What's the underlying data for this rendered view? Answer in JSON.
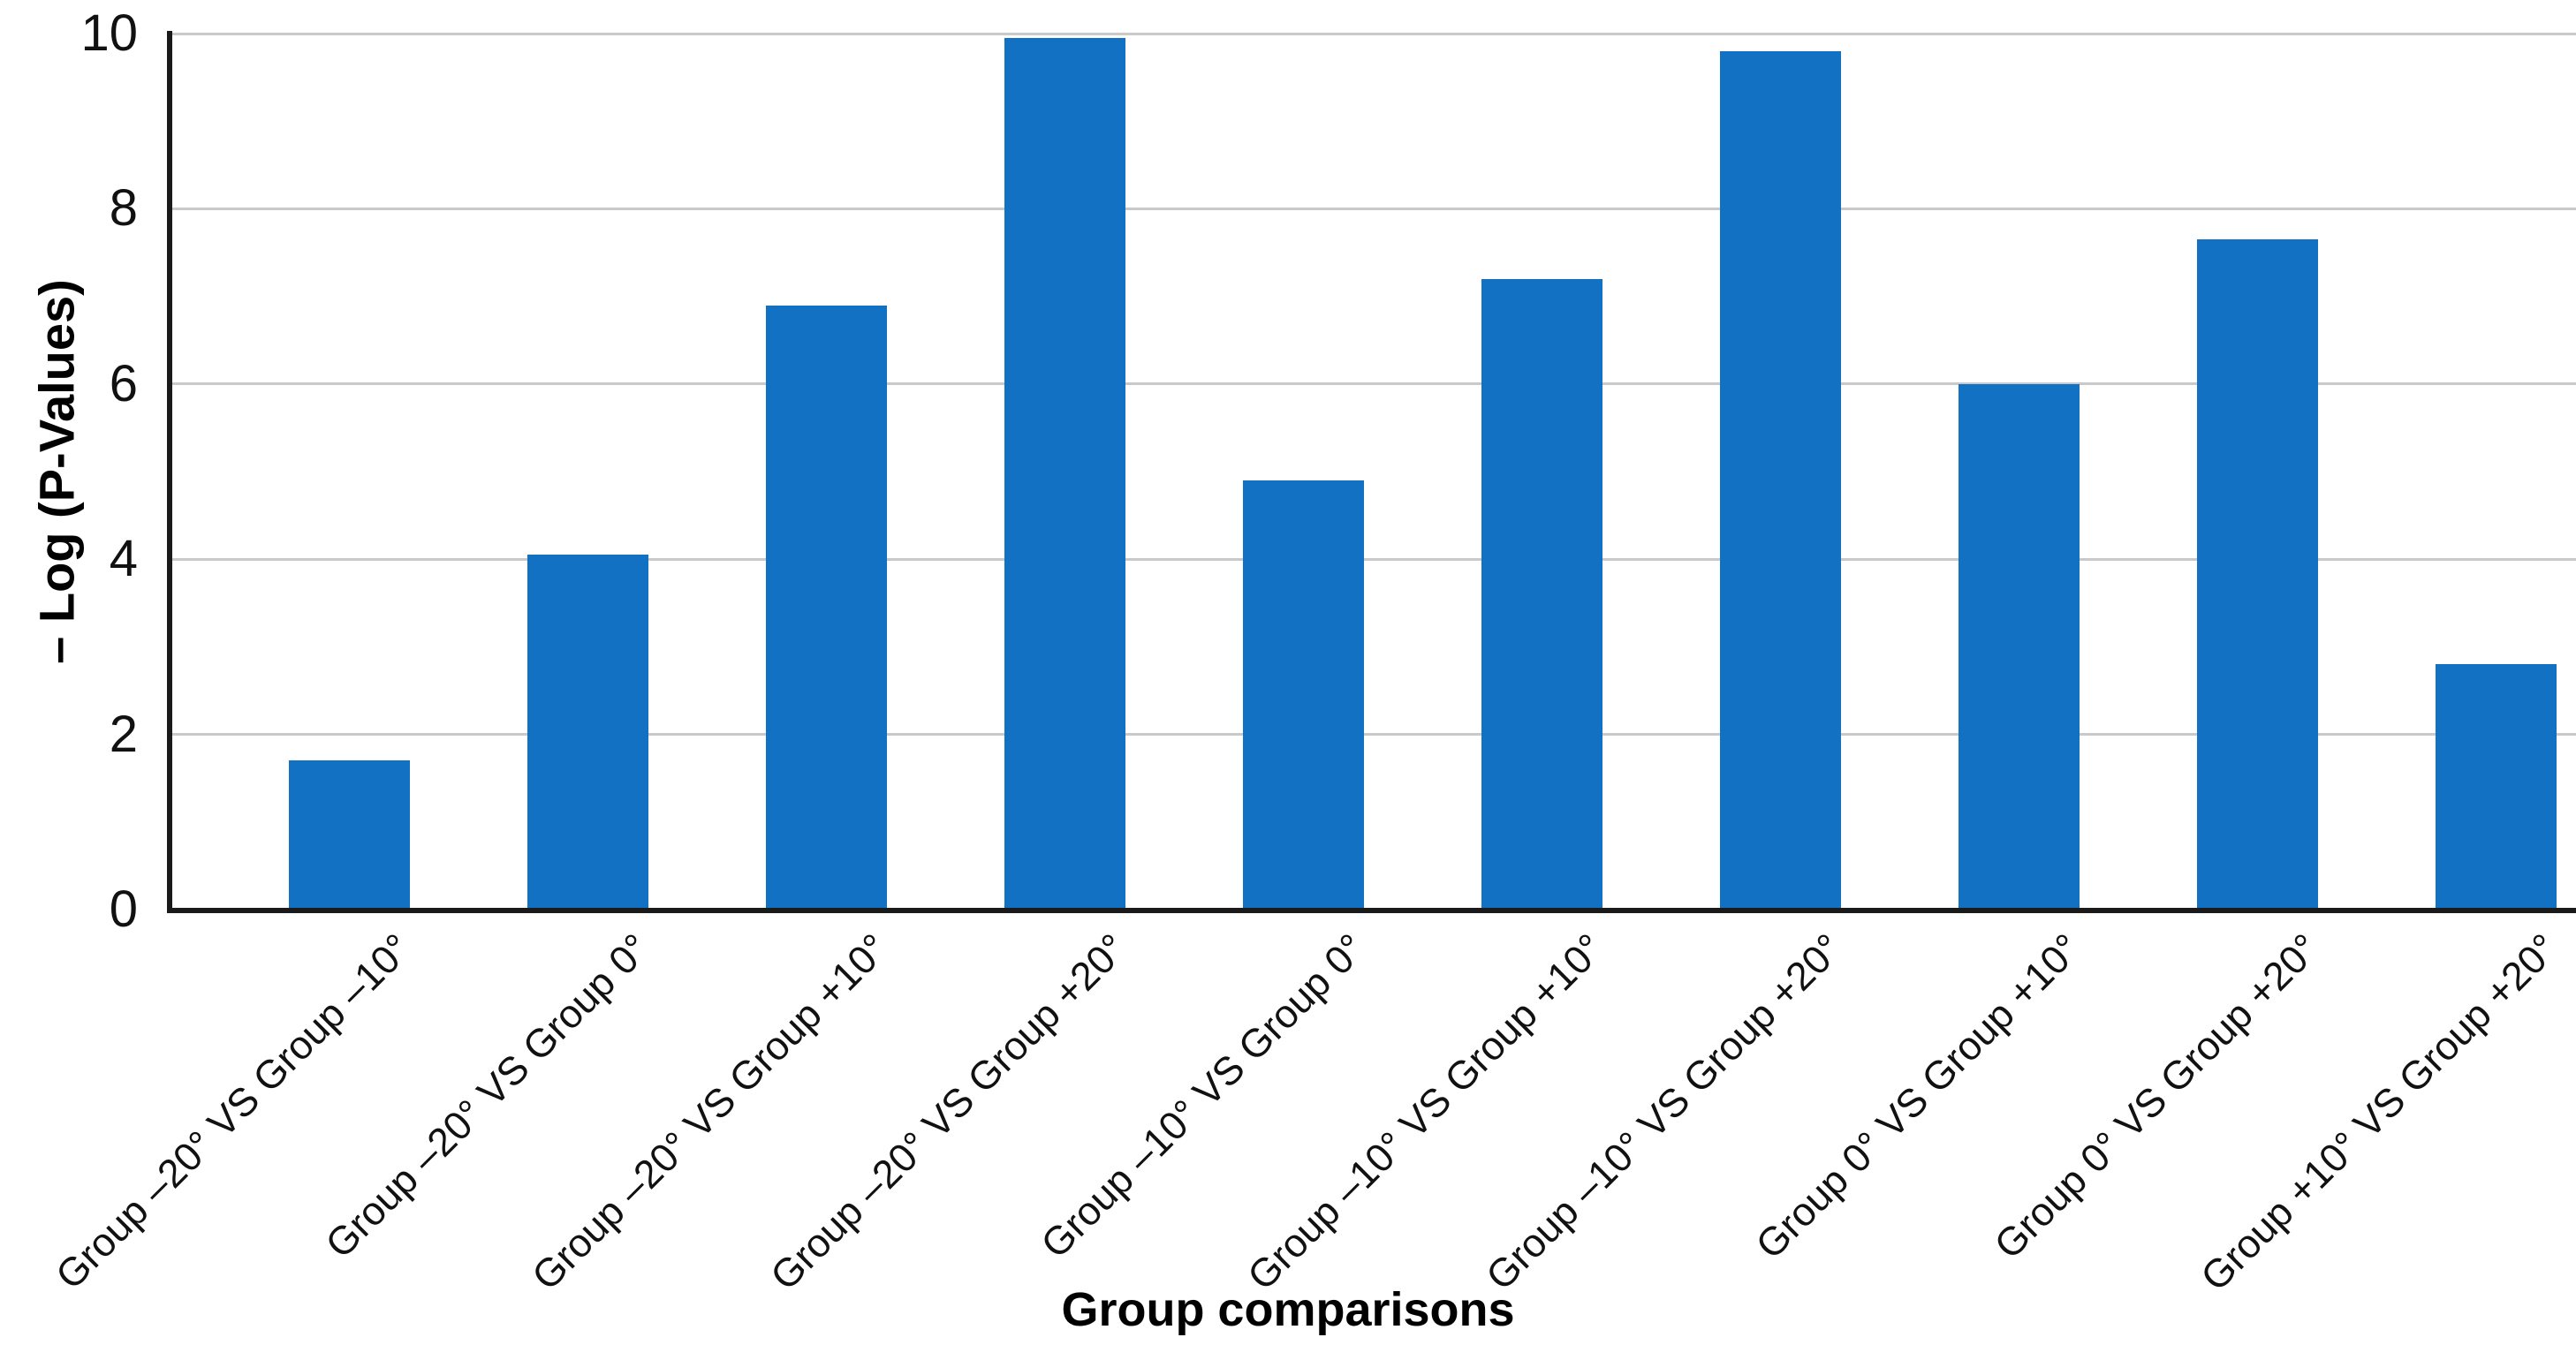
{
  "chart_data": {
    "type": "bar",
    "title": "",
    "categories": [
      "Group –20° VS Group –10°",
      "Group –20° VS Group 0°",
      "Group –20° VS Group +10°",
      "Group –20° VS Group +20°",
      "Group –10° VS Group 0°",
      "Group –10° VS Group +10°",
      "Group –10° VS Group +20°",
      "Group 0° VS Group +10°",
      "Group 0° VS Group +20°",
      "Group +10° VS Group +20°"
    ],
    "values": [
      1.7,
      4.05,
      6.9,
      9.95,
      4.9,
      7.2,
      9.8,
      6.0,
      7.65,
      2.8
    ],
    "xlabel": "Group comparisons",
    "ylabel": "– Log (P-Values)",
    "ylim": [
      0,
      10
    ],
    "yticks": [
      0,
      2,
      4,
      6,
      8,
      10
    ],
    "grid": true,
    "legend_position": "none",
    "bar_color": "#1371c3",
    "gridline_color": "#c9c9c9",
    "axis_color": "#1a1a1a",
    "text_color": "#111111"
  }
}
